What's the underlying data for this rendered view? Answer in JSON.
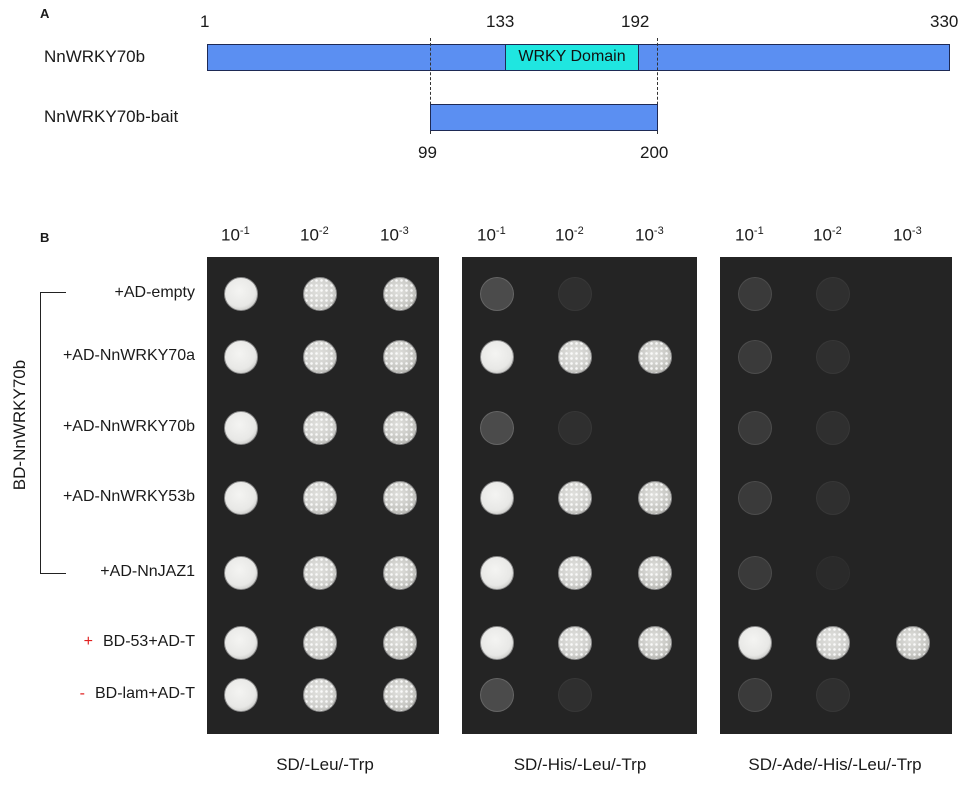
{
  "panel_a": {
    "label": "A",
    "protein_name": "NnWRKY70b",
    "bait_name": "NnWRKY70b-bait",
    "domain_label": "WRKY Domain",
    "pos_start": "1",
    "pos_domain_start": "133",
    "pos_domain_end": "192",
    "pos_end": "330",
    "bait_start": "99",
    "bait_end": "200"
  },
  "panel_b": {
    "label": "B",
    "group_label": "BD-NnWRKY70b",
    "dilutions": [
      "10",
      "10",
      "10"
    ],
    "dilution_exponents": [
      "-1",
      "-2",
      "-3"
    ],
    "rows": [
      {
        "label": "+AD-empty",
        "sign": ""
      },
      {
        "label": "+AD-NnWRKY70a",
        "sign": ""
      },
      {
        "label": "+AD-NnWRKY70b",
        "sign": ""
      },
      {
        "label": "+AD-NnWRKY53b",
        "sign": ""
      },
      {
        "label": "+AD-NnJAZ1",
        "sign": ""
      },
      {
        "label": "BD-53+AD-T",
        "sign": "+"
      },
      {
        "label": "BD-lam+AD-T",
        "sign": "-"
      }
    ],
    "media": [
      "SD/-Leu/-Trp",
      "SD/-His/-Leu/-Trp",
      "SD/-Ade/-His/-Leu/-Trp"
    ],
    "growth": [
      [
        [
          1,
          1,
          1
        ],
        [
          1,
          1,
          1
        ],
        [
          1,
          1,
          1
        ],
        [
          1,
          1,
          1
        ],
        [
          1,
          1,
          1
        ],
        [
          1,
          1,
          1
        ],
        [
          1,
          1,
          1
        ]
      ],
      [
        [
          0.35,
          0.1,
          0
        ],
        [
          1,
          1,
          1
        ],
        [
          0.35,
          0.1,
          0
        ],
        [
          1,
          1,
          1
        ],
        [
          1,
          1,
          1
        ],
        [
          1,
          1,
          1
        ],
        [
          0.35,
          0.1,
          0
        ]
      ],
      [
        [
          0.2,
          0.1,
          0
        ],
        [
          0.2,
          0.1,
          0
        ],
        [
          0.2,
          0.1,
          0
        ],
        [
          0.2,
          0.1,
          0
        ],
        [
          0.2,
          0.05,
          0
        ],
        [
          1,
          1,
          1
        ],
        [
          0.2,
          0.1,
          0
        ]
      ]
    ]
  }
}
